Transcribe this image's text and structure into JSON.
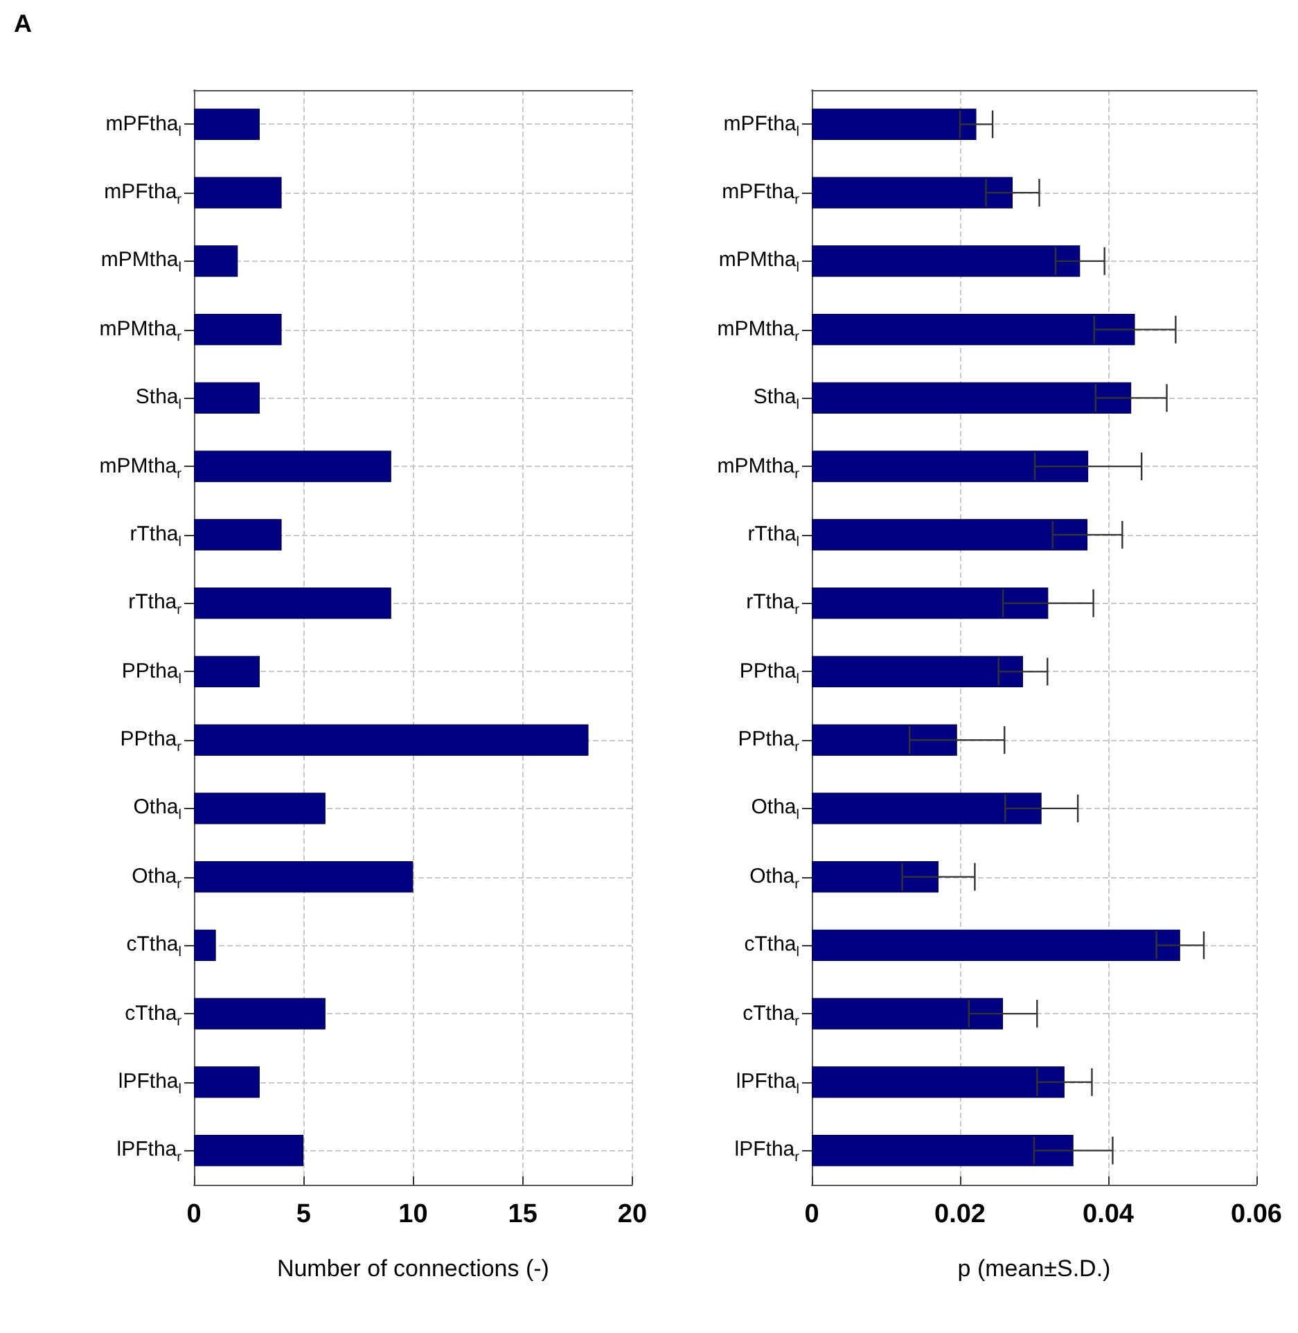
{
  "chart_data": [
    {
      "type": "bar",
      "orientation": "horizontal",
      "annotations": [
        "A"
      ],
      "xlabel": "Number of connections (-)",
      "categories": [
        "mPFtha$_{l}$",
        "mPFtha$_{r}$",
        "mPMtha$_{l}$",
        "mPMtha$_{r}$",
        "Stha$_{l}$",
        "mPMtha$_{r}$",
        "rTtha$_{l}$",
        "rTtha$_{r}$",
        "PPtha$_{l}$",
        "PPtha$_{r}$",
        "Otha$_{l}$",
        "Otha$_{r}$",
        "cTtha$_{l}$",
        "cTtha$_{r}$",
        "lPFtha$_{l}$",
        "lPFtha$_{r}$"
      ],
      "values": [
        3,
        4,
        2,
        4,
        3,
        9,
        4,
        9,
        3,
        18,
        6,
        10,
        1,
        6,
        3,
        5
      ],
      "color": "#000080",
      "xlim": [
        0,
        20
      ],
      "xticks": [
        0,
        5,
        10,
        15,
        20
      ],
      "grid": true
    },
    {
      "type": "bar",
      "orientation": "horizontal",
      "xlabel": "p (mean±S.D.)",
      "categories": [
        "mPFtha$_{l}$",
        "mPFtha$_{r}$",
        "mPMtha$_{l}$",
        "mPMtha$_{r}$",
        "Stha$_{l}$",
        "mPMtha$_{r}$",
        "rTtha$_{l}$",
        "rTtha$_{r}$",
        "PPtha$_{l}$",
        "PPtha$_{r}$",
        "Otha$_{l}$",
        "Otha$_{r}$",
        "cTtha$_{l}$",
        "cTtha$_{r}$",
        "lPFtha$_{l}$",
        "lPFtha$_{r}$"
      ],
      "values": [
        0.0222,
        0.0271,
        0.0362,
        0.0436,
        0.0431,
        0.0373,
        0.0372,
        0.0319,
        0.0285,
        0.0196,
        0.031,
        0.0171,
        0.0497,
        0.0258,
        0.0341,
        0.0353
      ],
      "errors": [
        0.0022,
        0.0036,
        0.0033,
        0.0055,
        0.0048,
        0.0072,
        0.0047,
        0.0061,
        0.0033,
        0.0064,
        0.0049,
        0.0049,
        0.0032,
        0.0046,
        0.0037,
        0.0053
      ],
      "color": "#000080",
      "xlim": [
        0,
        0.06
      ],
      "xticks": [
        0,
        0.02,
        0.04,
        0.06
      ],
      "grid": true
    }
  ]
}
